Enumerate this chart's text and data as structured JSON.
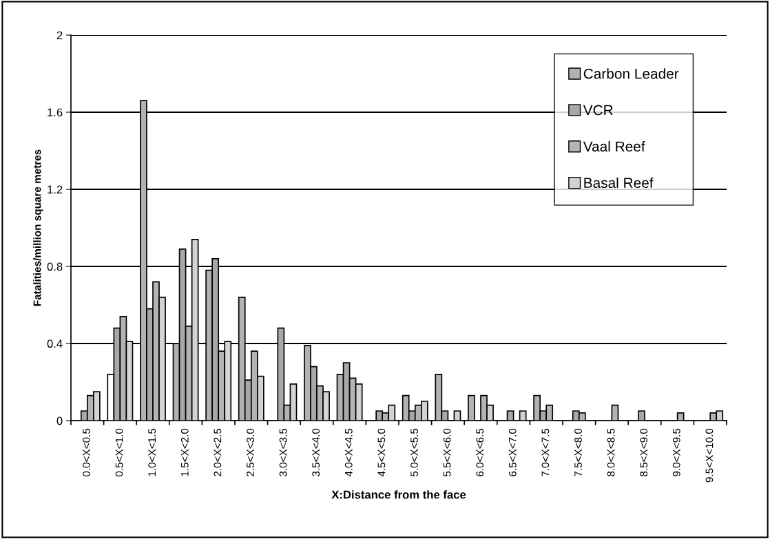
{
  "chart_data": {
    "type": "bar",
    "xlabel": "X:Distance from the face",
    "ylabel": "Fatalities/million square metres",
    "categories": [
      "0.0<X<0.5",
      "0.5<X<1.0",
      "1.0<X<1.5",
      "1.5<X<2.0",
      "2.0<X<2.5",
      "2.5<X<3.0",
      "3.0<X<3.5",
      "3.5<X<4.0",
      "4.0<X<4.5",
      "4.5<X<5.0",
      "5.0<X<5.5",
      "5.5<X<6.0",
      "6.0<X<6.5",
      "6.5<X<7.0",
      "7.0<X<7.5",
      "7.5<X<8.0",
      "8.0<X<8.5",
      "8.5<X<9.0",
      "9.0<X<9.5",
      "9.5<X<10.0"
    ],
    "series": [
      {
        "name": "Carbon Leader",
        "color": "#b2b2b2",
        "colors": [
          "#b2b2b2",
          "#ffffff",
          "#b2b2b2",
          "#b2b2b2",
          "#b2b2b2",
          "#b2b2b2",
          "#b2b2b2",
          "#b2b2b2",
          "#b2b2b2",
          "#b2b2b2",
          "#b2b2b2",
          "#b2b2b2",
          "#b2b2b2",
          "#b2b2b2",
          "#b2b2b2",
          "#b2b2b2",
          "#b2b2b2",
          "#b2b2b2",
          "#b2b2b2",
          "#b2b2b2"
        ],
        "values": [
          null,
          0.24,
          1.66,
          0.4,
          0.78,
          0.64,
          null,
          0.39,
          0.24,
          null,
          0.13,
          0.24,
          0.13,
          null,
          0.13,
          null,
          null,
          null,
          null,
          null
        ]
      },
      {
        "name": "VCR",
        "color": "#a8a8a8",
        "values": [
          0.05,
          0.48,
          0.58,
          0.89,
          0.84,
          0.21,
          0.48,
          0.28,
          0.3,
          0.05,
          0.05,
          0.05,
          null,
          0.05,
          0.05,
          0.05,
          null,
          0.05,
          null,
          null
        ]
      },
      {
        "name": "Vaal Reef",
        "color": "#b4b4b4",
        "values": [
          0.13,
          0.54,
          0.72,
          0.49,
          0.36,
          0.36,
          0.08,
          0.18,
          0.22,
          0.04,
          0.08,
          null,
          0.13,
          null,
          0.08,
          0.04,
          0.08,
          null,
          0.04,
          0.04
        ]
      },
      {
        "name": "Basal Reef",
        "color": "#d3d3d3",
        "values": [
          0.15,
          0.41,
          0.64,
          0.94,
          0.41,
          0.23,
          0.19,
          0.15,
          0.19,
          0.08,
          0.1,
          0.05,
          0.08,
          0.05,
          null,
          null,
          null,
          null,
          null,
          0.05
        ]
      }
    ],
    "ylim": [
      0,
      2
    ],
    "yticks": [
      0,
      0.4,
      0.8,
      1.2,
      1.6,
      2
    ],
    "grid": "y",
    "legend": "top right"
  }
}
